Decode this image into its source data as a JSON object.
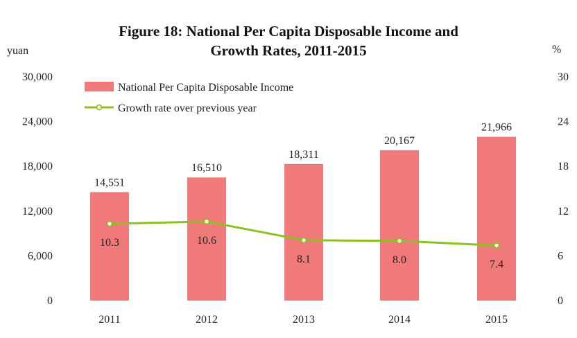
{
  "chart_data": {
    "type": "bar+line",
    "title_lines": [
      "Figure 18: National Per Capita Disposable Income and",
      "Growth Rates, 2011-2015"
    ],
    "left_unit": "yuan",
    "right_unit": "%",
    "categories": [
      "2011",
      "2012",
      "2013",
      "2014",
      "2015"
    ],
    "left_axis": {
      "min": 0,
      "max": 30000,
      "ticks": [
        0,
        6000,
        12000,
        18000,
        24000,
        30000
      ],
      "tick_labels": [
        "0",
        "6,000",
        "12,000",
        "18,000",
        "24,000",
        "30,000"
      ]
    },
    "right_axis": {
      "min": 0,
      "max": 30,
      "ticks": [
        0,
        6,
        12,
        18,
        24,
        30
      ],
      "tick_labels": [
        "0",
        "6",
        "12",
        "18",
        "24",
        "30"
      ]
    },
    "series": [
      {
        "name": "National Per Capita Disposable Income",
        "kind": "bar",
        "axis": "left",
        "values": [
          14551,
          16510,
          18311,
          20167,
          21966
        ],
        "value_labels": [
          "14,551",
          "16,510",
          "18,311",
          "20,167",
          "21,966"
        ],
        "color": "#f07a7a"
      },
      {
        "name": "Growth rate over previous year",
        "kind": "line",
        "axis": "right",
        "values": [
          10.3,
          10.6,
          8.1,
          8.0,
          7.4
        ],
        "value_labels": [
          "10.3",
          "10.6",
          "8.1",
          "8.0",
          "7.4"
        ],
        "color": "#8cc21f"
      }
    ],
    "legend_position": "top-left",
    "grid": false
  }
}
